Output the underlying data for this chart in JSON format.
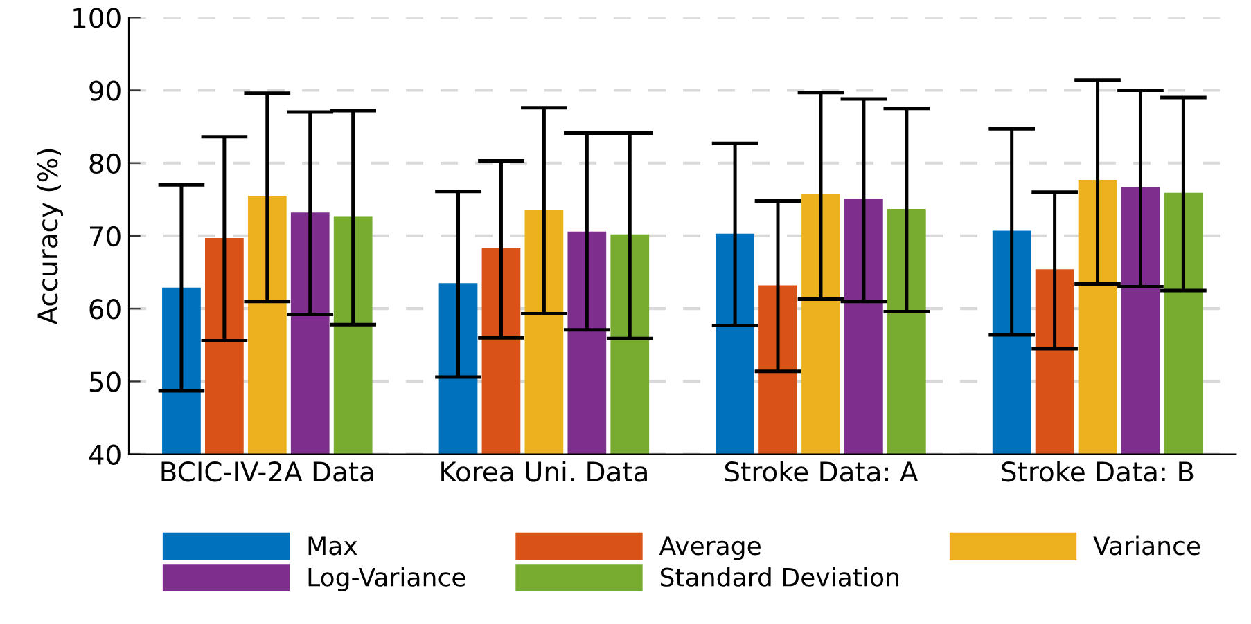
{
  "chart_data": {
    "type": "bar",
    "ylabel": "Accuracy (%)",
    "categories": [
      "BCIC-IV-2A Data",
      "Korea Uni. Data",
      "Stroke Data: A",
      "Stroke Data: B"
    ],
    "series": [
      {
        "name": "Max",
        "color": "#0072bd",
        "values": [
          62.9,
          63.5,
          70.3,
          70.7
        ],
        "errors": [
          [
            48.7,
            77.0
          ],
          [
            50.6,
            76.1
          ],
          [
            57.7,
            82.7
          ],
          [
            56.4,
            84.7
          ]
        ]
      },
      {
        "name": "Average",
        "color": "#d95319",
        "values": [
          69.7,
          68.3,
          63.2,
          65.4
        ],
        "errors": [
          [
            55.6,
            83.6
          ],
          [
            56.0,
            80.3
          ],
          [
            51.4,
            74.8
          ],
          [
            54.5,
            76.0
          ]
        ]
      },
      {
        "name": "Variance",
        "color": "#edb120",
        "values": [
          75.5,
          73.5,
          75.8,
          77.7
        ],
        "errors": [
          [
            61.0,
            89.6
          ],
          [
            59.3,
            87.6
          ],
          [
            61.3,
            89.7
          ],
          [
            63.4,
            91.4
          ]
        ]
      },
      {
        "name": "Log-Variance",
        "color": "#7e2f8e",
        "values": [
          73.2,
          70.6,
          75.1,
          76.7
        ],
        "errors": [
          [
            59.2,
            87.0
          ],
          [
            57.1,
            84.1
          ],
          [
            61.0,
            88.8
          ],
          [
            63.0,
            90.0
          ]
        ]
      },
      {
        "name": "Standard Deviation",
        "color": "#77ac30",
        "values": [
          72.7,
          70.2,
          73.7,
          75.9
        ],
        "errors": [
          [
            57.8,
            87.2
          ],
          [
            55.9,
            84.1
          ],
          [
            59.6,
            87.5
          ],
          [
            62.5,
            89.0
          ]
        ]
      }
    ],
    "ylim": [
      40,
      100
    ],
    "yticks": [
      40,
      50,
      60,
      70,
      80,
      90,
      100
    ],
    "grid": "y",
    "legend": "bottom"
  }
}
